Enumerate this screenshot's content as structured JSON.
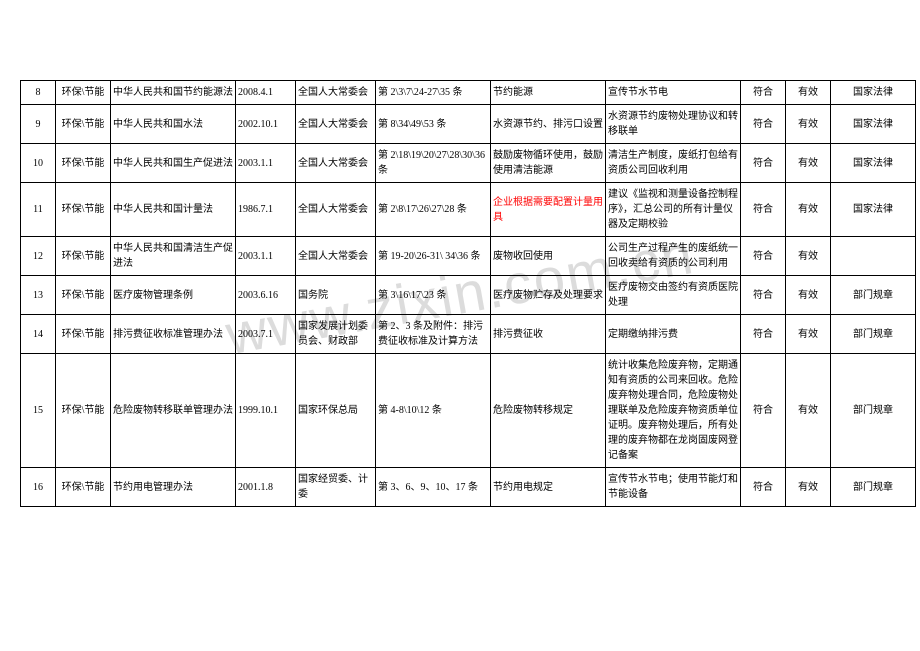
{
  "watermark": "www.zixin.com.cn",
  "rows": [
    {
      "idx": "8",
      "cat": "环保\\节能",
      "name": "中华人民共和国节约能源法",
      "date": "2008.4.1",
      "org": "全国人大常委会",
      "clause": "第 2\\3\\7\\24-27\\35 条",
      "sum": "节约能源",
      "detail": "宣传节水节电",
      "fit": "符合",
      "valid": "有效",
      "type": "国家法律",
      "red": false
    },
    {
      "idx": "9",
      "cat": "环保\\节能",
      "name": "中华人民共和国水法",
      "date": "2002.10.1",
      "org": "全国人大常委会",
      "clause": "第 8\\34\\49\\53 条",
      "sum": "水资源节约、排污口设置",
      "detail": "水资源节约废物处理协议和转移联单",
      "fit": "符合",
      "valid": "有效",
      "type": "国家法律",
      "red": false
    },
    {
      "idx": "10",
      "cat": "环保\\节能",
      "name": "中华人民共和国生产促进法",
      "date": "2003.1.1",
      "org": "全国人大常委会",
      "clause": "第 2\\18\\19\\20\\27\\28\\30\\36 条",
      "sum": "鼓励废物循环使用，鼓励使用清洁能源",
      "detail": "清洁生产制度，废纸打包给有资质公司回收利用",
      "fit": "符合",
      "valid": "有效",
      "type": "国家法律",
      "red": false
    },
    {
      "idx": "11",
      "cat": "环保\\节能",
      "name": "中华人民共和国计量法",
      "date": "1986.7.1",
      "org": "全国人大常委会",
      "clause": "第 2\\8\\17\\26\\27\\28 条",
      "sum": "企业根据需要配置计量用具",
      "detail": "建议《监视和测量设备控制程序》，汇总公司的所有计量仪器及定期校验",
      "fit": "符合",
      "valid": "有效",
      "type": "国家法律",
      "red": true
    },
    {
      "idx": "12",
      "cat": "环保\\节能",
      "name": "中华人民共和国清洁生产促进法",
      "date": "2003.1.1",
      "org": "全国人大常委会",
      "clause": "第 19-20\\26-31\\ 34\\36 条",
      "sum": "废物收回使用",
      "detail": "公司生产过程产生的废纸统一回收卖给有资质的公司利用",
      "fit": "符合",
      "valid": "有效",
      "type": "",
      "red": false
    },
    {
      "idx": "13",
      "cat": "环保\\节能",
      "name": "医疗废物管理条例",
      "date": "2003.6.16",
      "org": "国务院",
      "clause": "第 3\\16\\17\\23 条",
      "sum": "医疗废物贮存及处理要求",
      "detail": "医疗废物交由签约有资质医院处理",
      "fit": "符合",
      "valid": "有效",
      "type": "部门规章",
      "red": false
    },
    {
      "idx": "14",
      "cat": "环保\\节能",
      "name": "排污费征收标准管理办法",
      "date": "2003.7.1",
      "org": "国家发展计划委员会、财政部",
      "clause": "第 2、3 条及附件：排污费征收标准及计算方法",
      "sum": "排污费征收",
      "detail": "定期缴纳排污费",
      "fit": "符合",
      "valid": "有效",
      "type": "部门规章",
      "red": false
    },
    {
      "idx": "15",
      "cat": "环保\\节能",
      "name": "危险废物转移联单管理办法",
      "date": "1999.10.1",
      "org": "国家环保总局",
      "clause": "第 4-8\\10\\12 条",
      "sum": "危险废物转移规定",
      "detail": "统计收集危险废弃物，定期通知有资质的公司来回收。危险废弃物处理合同，危险废物处理联单及危险废弃物资质单位证明。废弃物处理后，所有处理的废弃物都在龙岗固废网登记备案",
      "fit": "符合",
      "valid": "有效",
      "type": "部门规章",
      "red": false
    },
    {
      "idx": "16",
      "cat": "环保\\节能",
      "name": "节约用电管理办法",
      "date": "2001.1.8",
      "org": "国家经贸委、计委",
      "clause": "第 3、6、9、10、17 条",
      "sum": "节约用电规定",
      "detail": "宣传节水节电；使用节能灯和节能设备",
      "fit": "符合",
      "valid": "有效",
      "type": "部门规章",
      "red": false
    }
  ]
}
